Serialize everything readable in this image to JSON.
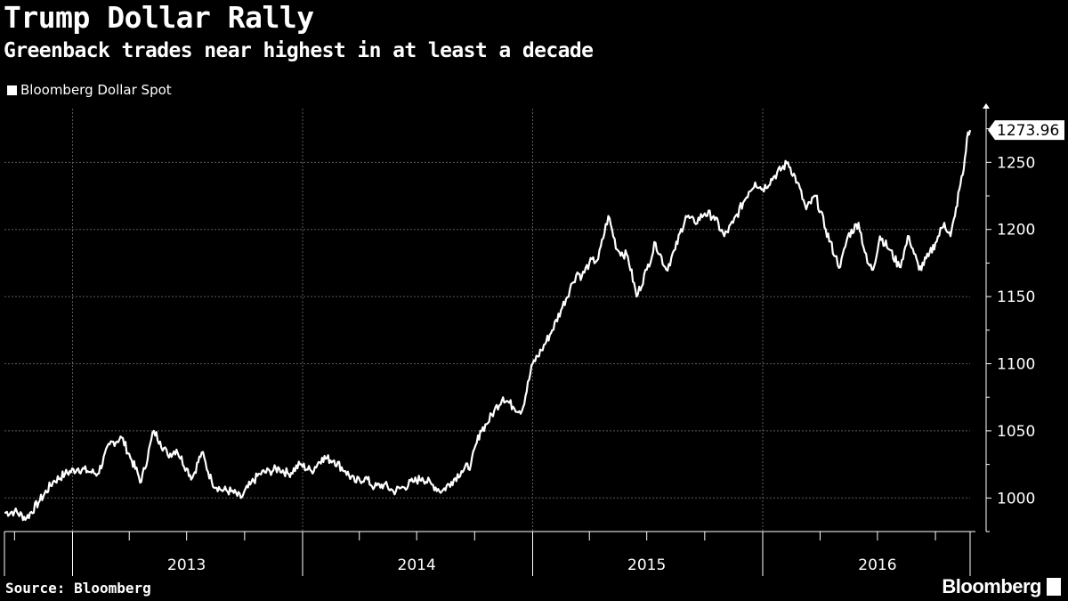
{
  "header": {
    "title": "Trump Dollar Rally",
    "subtitle": "Greenback trades near highest in at least a decade"
  },
  "footer": {
    "source": "Source: Bloomberg",
    "logo_text": "Bloomberg"
  },
  "colors": {
    "background": "#000000",
    "line": "#ffffff",
    "grid": "#5a5a5a"
  },
  "chart_data": {
    "type": "line",
    "title": "Trump Dollar Rally",
    "subtitle": "Greenback trades near highest in at least a decade",
    "legend": [
      "Bloomberg Dollar Spot"
    ],
    "legend_position": "top-left",
    "grid": true,
    "y_axis_position": "right",
    "ylim": [
      975,
      1290
    ],
    "y_ticks": [
      1000,
      1050,
      1100,
      1150,
      1200,
      1250
    ],
    "xlim": [
      "2012-09-15",
      "2016-11-25"
    ],
    "x_year_labels": [
      {
        "label": "2013",
        "mid": "2013-07-01"
      },
      {
        "label": "2014",
        "mid": "2014-07-01"
      },
      {
        "label": "2015",
        "mid": "2015-07-01"
      },
      {
        "label": "2016",
        "mid": "2016-07-01"
      }
    ],
    "last_value": "1273.96",
    "series": [
      {
        "name": "Bloomberg Dollar Spot",
        "x": [
          "2012-09-15",
          "2012-10-01",
          "2012-10-20",
          "2012-11-10",
          "2012-12-01",
          "2012-12-20",
          "2013-01-10",
          "2013-01-25",
          "2013-02-10",
          "2013-03-01",
          "2013-03-20",
          "2013-04-05",
          "2013-04-20",
          "2013-05-10",
          "2013-05-20",
          "2013-06-01",
          "2013-06-15",
          "2013-07-01",
          "2013-07-10",
          "2013-07-25",
          "2013-08-10",
          "2013-08-25",
          "2013-09-10",
          "2013-09-25",
          "2013-10-10",
          "2013-10-25",
          "2013-11-10",
          "2013-11-25",
          "2013-12-10",
          "2013-12-28",
          "2014-01-15",
          "2014-02-01",
          "2014-02-20",
          "2014-03-10",
          "2014-03-25",
          "2014-04-10",
          "2014-04-25",
          "2014-05-10",
          "2014-05-25",
          "2014-06-10",
          "2014-06-25",
          "2014-07-10",
          "2014-07-25",
          "2014-08-10",
          "2014-08-25",
          "2014-09-10",
          "2014-09-25",
          "2014-10-10",
          "2014-10-20",
          "2014-11-01",
          "2014-11-15",
          "2014-12-01",
          "2014-12-15",
          "2015-01-01",
          "2015-01-15",
          "2015-02-01",
          "2015-02-15",
          "2015-03-05",
          "2015-03-13",
          "2015-03-20",
          "2015-04-01",
          "2015-04-15",
          "2015-05-01",
          "2015-05-15",
          "2015-06-01",
          "2015-06-15",
          "2015-07-01",
          "2015-07-15",
          "2015-08-01",
          "2015-08-15",
          "2015-09-01",
          "2015-09-15",
          "2015-10-01",
          "2015-10-15",
          "2015-11-01",
          "2015-11-15",
          "2015-12-01",
          "2015-12-10",
          "2015-12-20",
          "2016-01-01",
          "2016-01-20",
          "2016-02-10",
          "2016-02-25",
          "2016-03-10",
          "2016-03-25",
          "2016-04-10",
          "2016-04-25",
          "2016-05-03",
          "2016-05-15",
          "2016-06-01",
          "2016-06-15",
          "2016-06-24",
          "2016-07-05",
          "2016-07-20",
          "2016-08-05",
          "2016-08-20",
          "2016-09-05",
          "2016-09-20",
          "2016-10-01",
          "2016-10-15",
          "2016-10-25",
          "2016-11-01",
          "2016-11-08",
          "2016-11-15",
          "2016-11-20",
          "2016-11-25"
        ],
        "values": [
          989,
          990,
          985,
          998,
          1012,
          1018,
          1022,
          1020,
          1018,
          1040,
          1045,
          1028,
          1012,
          1050,
          1042,
          1032,
          1036,
          1022,
          1015,
          1034,
          1012,
          1006,
          1005,
          1000,
          1010,
          1018,
          1020,
          1022,
          1018,
          1025,
          1020,
          1030,
          1028,
          1020,
          1012,
          1015,
          1008,
          1010,
          1005,
          1008,
          1012,
          1015,
          1010,
          1005,
          1012,
          1020,
          1025,
          1050,
          1055,
          1065,
          1075,
          1068,
          1065,
          1100,
          1110,
          1125,
          1140,
          1160,
          1168,
          1165,
          1175,
          1178,
          1210,
          1185,
          1180,
          1150,
          1170,
          1190,
          1170,
          1185,
          1210,
          1205,
          1212,
          1210,
          1195,
          1205,
          1220,
          1228,
          1235,
          1230,
          1240,
          1250,
          1235,
          1215,
          1225,
          1200,
          1180,
          1172,
          1195,
          1205,
          1175,
          1170,
          1195,
          1185,
          1172,
          1195,
          1170,
          1180,
          1190,
          1205,
          1195,
          1210,
          1230,
          1245,
          1268,
          1274
        ]
      }
    ]
  }
}
